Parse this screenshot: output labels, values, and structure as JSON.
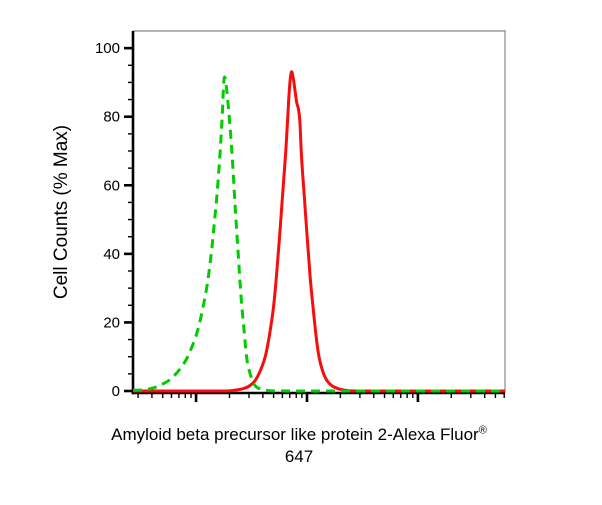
{
  "labels": {
    "ylabel": "Cell Counts (% Max)",
    "xlabel_line1": "Amyloid beta precursor like protein 2-Alexa Fluor",
    "xlabel_sup": "®",
    "xlabel_line2": "647"
  },
  "colors": {
    "background": "#ffffff",
    "axis_black": "#000000",
    "frame_gray": "#9b9b9b",
    "text": "#000000",
    "green_dashed": "#00cc00",
    "red_solid": "#f80d0d"
  },
  "chart_data": {
    "type": "line",
    "title": "",
    "xlabel": "Amyloid beta precursor like protein 2-Alexa Fluor® 647",
    "ylabel": "Cell Counts (% Max)",
    "x_scale": "log10",
    "x_range": [
      2.7,
      6100
    ],
    "y_range": [
      0,
      105
    ],
    "y_ticks": [
      0,
      20,
      40,
      60,
      80,
      100
    ],
    "y_minor_step": 5,
    "x_major_ticks": [
      10,
      100,
      1000
    ],
    "x_minor_mantissas": [
      2,
      3,
      4,
      5,
      6,
      7,
      8,
      9
    ],
    "grid": false,
    "legend": "none",
    "series": [
      {
        "name": "red-solid-sample",
        "style": "solid",
        "color": "#f80d0d",
        "peak": {
          "x": 72,
          "y": 93
        },
        "points": [
          [
            2.7,
            0
          ],
          [
            6,
            0
          ],
          [
            10,
            0
          ],
          [
            15,
            0
          ],
          [
            18,
            0
          ],
          [
            22,
            0.2
          ],
          [
            26,
            0.6
          ],
          [
            30,
            1.4
          ],
          [
            34,
            3
          ],
          [
            38,
            6
          ],
          [
            42,
            10
          ],
          [
            45.7,
            16
          ],
          [
            49.7,
            24
          ],
          [
            52.9,
            33
          ],
          [
            56.3,
            44
          ],
          [
            59.9,
            56
          ],
          [
            63.8,
            68
          ],
          [
            66.6,
            78
          ],
          [
            69.4,
            88
          ],
          [
            72.3,
            93
          ],
          [
            75.4,
            91
          ],
          [
            78.4,
            87
          ],
          [
            81,
            84
          ],
          [
            84,
            82
          ],
          [
            86.5,
            78
          ],
          [
            89.4,
            68
          ],
          [
            94.9,
            56
          ],
          [
            100.8,
            44
          ],
          [
            107,
            33
          ],
          [
            113.8,
            24
          ],
          [
            120.8,
            16
          ],
          [
            128.3,
            10
          ],
          [
            139.5,
            5.5
          ],
          [
            151.7,
            3
          ],
          [
            168.3,
            1.5
          ],
          [
            194,
            0.6
          ],
          [
            239,
            0.1
          ],
          [
            400,
            0
          ],
          [
            1000,
            0
          ],
          [
            2000,
            0
          ],
          [
            3000,
            0
          ],
          [
            4500,
            0
          ],
          [
            6100,
            0
          ]
        ]
      },
      {
        "name": "green-dashed-control",
        "style": "dashed",
        "color": "#00cc00",
        "peak": {
          "x": 18,
          "y": 91
        },
        "points": [
          [
            2.7,
            0.2
          ],
          [
            3.2,
            0.3
          ],
          [
            3.8,
            0.6
          ],
          [
            4.4,
            1.2
          ],
          [
            5.0,
            2
          ],
          [
            5.9,
            3.5
          ],
          [
            7.0,
            6
          ],
          [
            8.1,
            9
          ],
          [
            9.2,
            13
          ],
          [
            10.2,
            17
          ],
          [
            11.3,
            23
          ],
          [
            12.6,
            31
          ],
          [
            13.7,
            40
          ],
          [
            14.5,
            48
          ],
          [
            15.5,
            58
          ],
          [
            16.5,
            70
          ],
          [
            17.2,
            80
          ],
          [
            17.9,
            91
          ],
          [
            18.7,
            89
          ],
          [
            19.9,
            80
          ],
          [
            21.2,
            68
          ],
          [
            22.5,
            54
          ],
          [
            24,
            40
          ],
          [
            25.5,
            27
          ],
          [
            27.2,
            17
          ],
          [
            28.8,
            9
          ],
          [
            31.4,
            4
          ],
          [
            34.2,
            1.5
          ],
          [
            38.9,
            0.5
          ],
          [
            45.7,
            0.1
          ],
          [
            70,
            0
          ],
          [
            100,
            0
          ],
          [
            200,
            0
          ],
          [
            300,
            0
          ],
          [
            600,
            0
          ],
          [
            1000,
            0
          ],
          [
            2000,
            0
          ],
          [
            3000,
            0
          ],
          [
            4500,
            0
          ],
          [
            6100,
            0
          ]
        ]
      }
    ]
  }
}
